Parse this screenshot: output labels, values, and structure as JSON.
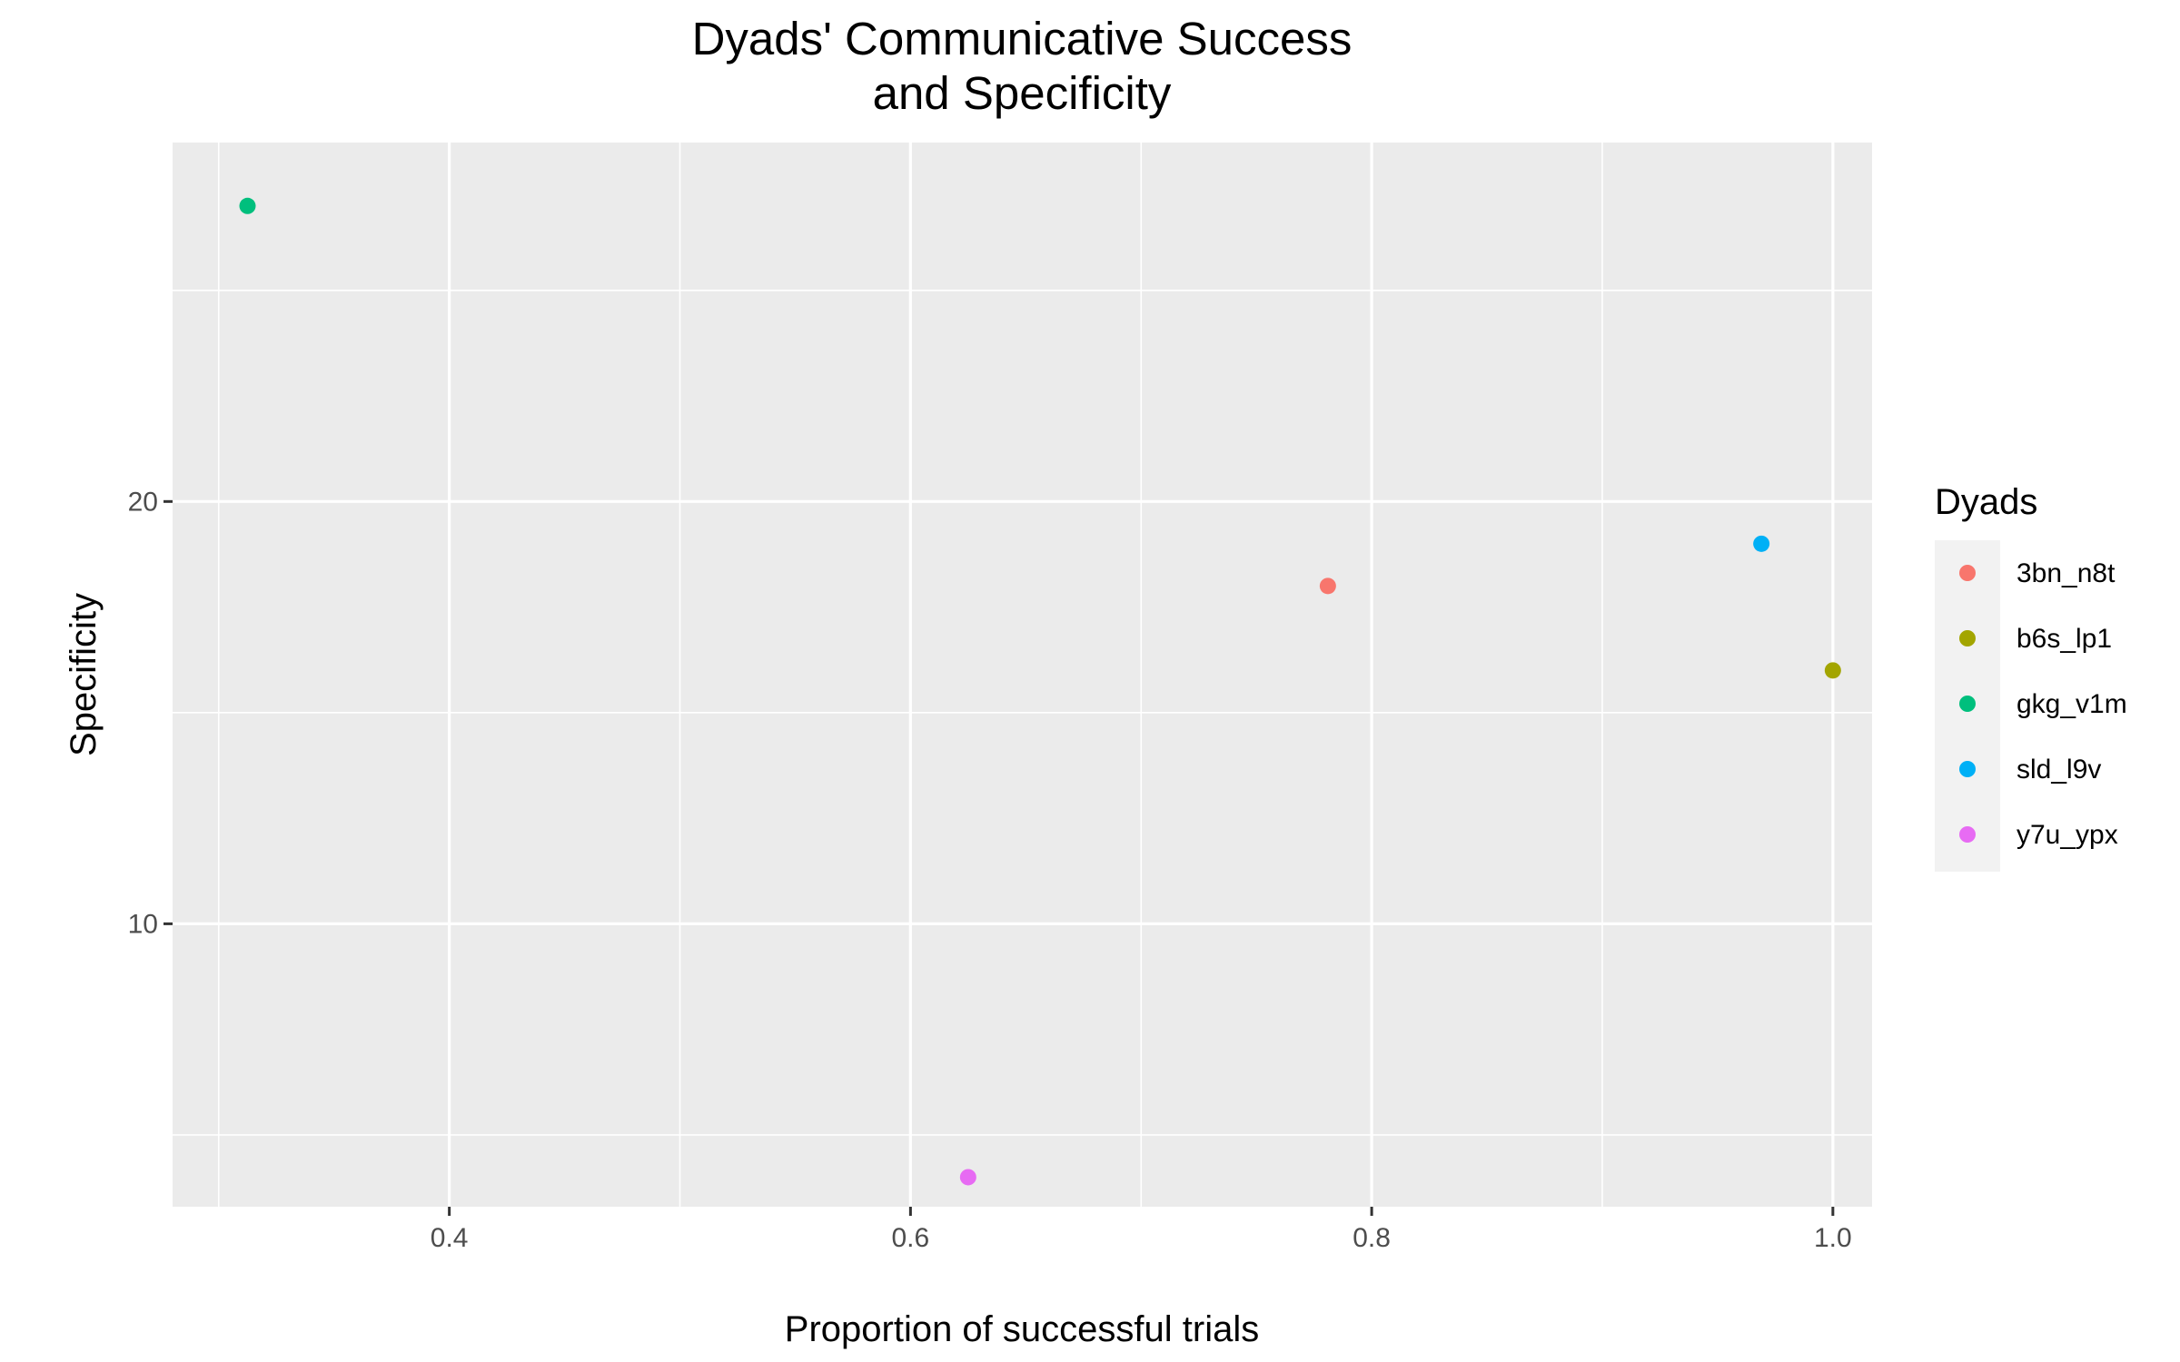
{
  "chart_data": {
    "type": "scatter",
    "title": [
      "Dyads' Communicative Success",
      "and Specificity"
    ],
    "xlabel": "Proportion of successful trials",
    "ylabel": "Specificity",
    "xlim": [
      0.28,
      1.017
    ],
    "ylim": [
      3.3,
      28.5
    ],
    "x_ticks": [
      0.4,
      0.6,
      0.8,
      1.0
    ],
    "x_tick_labels": [
      "0.4",
      "0.6",
      "0.8",
      "1.0"
    ],
    "x_minor_ticks": [
      0.3,
      0.5,
      0.7,
      0.9
    ],
    "y_ticks": [
      10,
      20
    ],
    "y_tick_labels": [
      "10",
      "20"
    ],
    "y_minor_ticks": [
      5,
      15,
      25
    ],
    "grid": true,
    "legend": {
      "title": "Dyads",
      "placement": "right"
    },
    "series": [
      {
        "name": "3bn_n8t",
        "color": "#F8766D",
        "points": [
          {
            "x": 0.781,
            "y": 18
          }
        ]
      },
      {
        "name": "b6s_lp1",
        "color": "#A3A500",
        "points": [
          {
            "x": 1.0,
            "y": 16
          }
        ]
      },
      {
        "name": "gkg_v1m",
        "color": "#00BF7D",
        "points": [
          {
            "x": 0.3125,
            "y": 27
          }
        ]
      },
      {
        "name": "sld_l9v",
        "color": "#00B0F6",
        "points": [
          {
            "x": 0.969,
            "y": 19
          }
        ]
      },
      {
        "name": "y7u_ypx",
        "color": "#E76BF3",
        "points": [
          {
            "x": 0.625,
            "y": 4
          }
        ]
      }
    ]
  }
}
